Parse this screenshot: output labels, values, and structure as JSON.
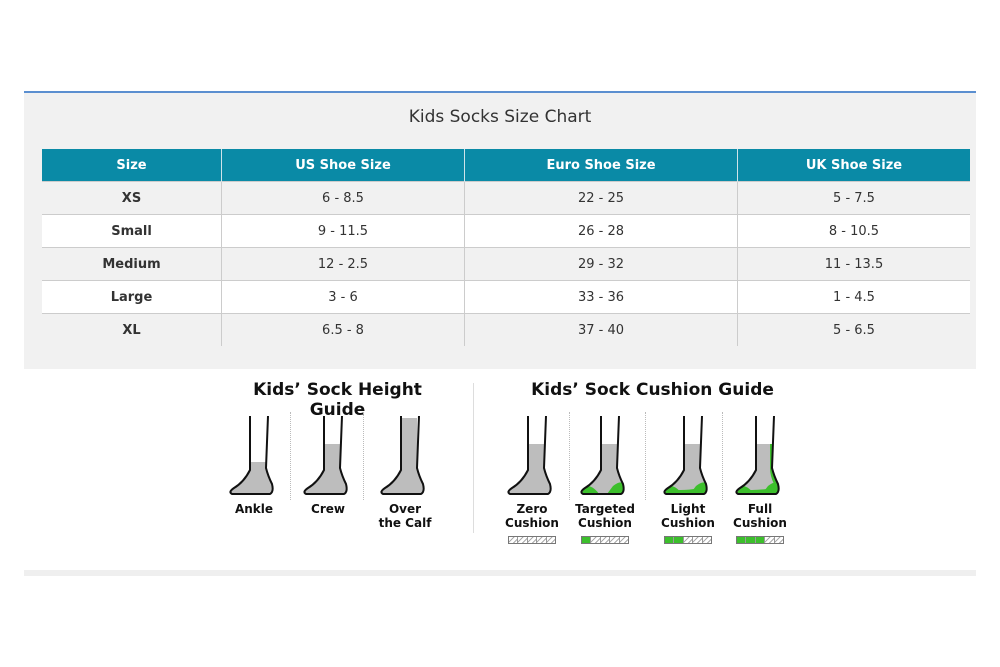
{
  "chart_title": "Kids Socks Size Chart",
  "table": {
    "headers": [
      "Size",
      "US Shoe Size",
      "Euro Shoe Size",
      "UK Shoe Size"
    ],
    "rows": [
      [
        "XS",
        "6 - 8.5",
        "22 - 25",
        "5 - 7.5"
      ],
      [
        "Small",
        "9 - 11.5",
        "26 - 28",
        "8 - 10.5"
      ],
      [
        "Medium",
        "12 - 2.5",
        "29 - 32",
        "11 - 13.5"
      ],
      [
        "Large",
        "3 - 6",
        "33 - 36",
        "1 - 4.5"
      ],
      [
        "XL",
        "6.5 - 8",
        "37 - 40",
        "5 - 6.5"
      ]
    ]
  },
  "colors": {
    "header": "#0a8aa6",
    "cushion": "#3cbf2c",
    "sock": "#bdbdbd"
  },
  "height_guide": {
    "title": "Kids’ Sock Height Guide",
    "items": [
      {
        "label1": "Ankle",
        "label2": "",
        "height": "ankle"
      },
      {
        "label1": "Crew",
        "label2": "",
        "height": "crew"
      },
      {
        "label1": "Over",
        "label2": "the Calf",
        "height": "calf"
      }
    ]
  },
  "cushion_guide": {
    "title": "Kids’ Sock Cushion Guide",
    "items": [
      {
        "label1": "Zero",
        "label2": "Cushion",
        "level": 0,
        "max": 5
      },
      {
        "label1": "Targeted",
        "label2": "Cushion",
        "level": 1,
        "max": 5
      },
      {
        "label1": "Light",
        "label2": "Cushion",
        "level": 2,
        "max": 5
      },
      {
        "label1": "Full",
        "label2": "Cushion",
        "level": 3,
        "max": 5
      }
    ]
  }
}
